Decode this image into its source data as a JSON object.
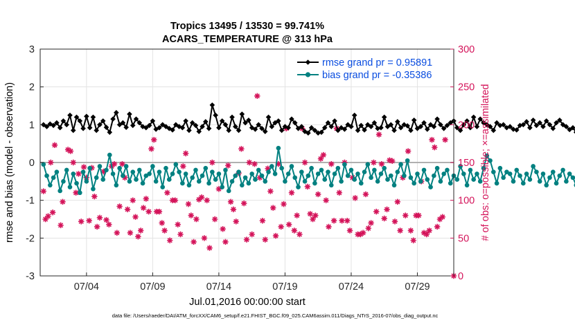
{
  "chart_data": {
    "type": "line",
    "title": "Tropics 13495 / 13530 = 99.741%",
    "subtitle": "ACARS_TEMPERATURE @ 313 hPa",
    "xlabel": "Jul.01,2016 00:00:00 start",
    "ylabel": "rmse and bias (model - observation)",
    "y2label": "# of obs: o=possible; ×=assimilated",
    "footnote": "data file: /Users/raeder/DAI/ATM_forcXX/CAM6_setup/f.e21.FHIST_BGC.f09_025.CAM6assim.011/Diags_NTrS_2016-07/obs_diag_output.nc",
    "xlim": [
      0.5,
      31.75
    ],
    "ylim": [
      -3,
      3
    ],
    "y2lim": [
      0,
      300
    ],
    "x_ticks": [
      {
        "value": 4,
        "label": "07/04"
      },
      {
        "value": 9,
        "label": "07/09"
      },
      {
        "value": 14,
        "label": "07/14"
      },
      {
        "value": 19,
        "label": "07/19"
      },
      {
        "value": 24,
        "label": "07/24"
      },
      {
        "value": 29,
        "label": "07/29"
      }
    ],
    "y_ticks": [
      "-3",
      "-2",
      "-1",
      "0",
      "1",
      "2",
      "3"
    ],
    "y2_ticks": [
      "0",
      "50",
      "100",
      "150",
      "200",
      "250",
      "300"
    ],
    "grid": true,
    "legend_position": "top-right",
    "colors": {
      "rmse": "#000000",
      "bias": "#008080",
      "obs": "#d4145a",
      "zero_line": "#b0b0b0",
      "right_axis": "#d4145a"
    },
    "x_start": 0.75,
    "x_step": 0.25,
    "series": [
      {
        "name": "rmse grand pr = 0.95891",
        "axis": "left",
        "marker": "diamond",
        "values": [
          1.0,
          0.95,
          1.02,
          0.98,
          1.05,
          0.92,
          1.1,
          1.0,
          1.25,
          0.85,
          1.2,
          1.1,
          0.9,
          1.22,
          0.92,
          1.2,
          0.85,
          1.0,
          1.1,
          0.93,
          0.8,
          1.15,
          1.32,
          1.0,
          1.05,
          0.93,
          1.28,
          0.98,
          1.15,
          1.05,
          0.95,
          0.92,
          0.98,
          1.1,
          0.88,
          0.92,
          1.0,
          0.95,
          0.9,
          0.86,
          1.0,
          0.95,
          0.92,
          1.1,
          0.85,
          1.05,
          0.98,
          0.82,
          0.95,
          1.08,
          0.9,
          1.52,
          1.25,
          0.92,
          1.1,
          1.0,
          0.85,
          1.2,
          0.95,
          0.85,
          1.28,
          1.05,
          1.12,
          0.92,
          0.88,
          1.0,
          0.9,
          0.82,
          1.2,
          0.95,
          1.05,
          1.1,
          0.85,
          0.95,
          0.92,
          1.15,
          1.05,
          0.9,
          0.95,
          0.82,
          0.78,
          0.92,
          0.85,
          0.78,
          0.8,
          0.92,
          1.05,
          0.95,
          1.1,
          0.85,
          0.92,
          0.88,
          1.0,
          0.95,
          1.25,
          0.85,
          0.98,
          0.86,
          1.0,
          0.95,
          1.05,
          0.9,
          0.92,
          1.2,
          0.95,
          1.0,
          0.85,
          1.08,
          0.92,
          1.0,
          0.97,
          0.85,
          1.12,
          0.9,
          0.95,
          1.05,
          0.88,
          1.0,
          0.95,
          1.15,
          1.0,
          0.9,
          0.98,
          1.05,
          1.1,
          0.92,
          0.85,
          1.0,
          1.1,
          0.92,
          1.2,
          0.95,
          1.15,
          1.05,
          1.0,
          0.95,
          0.85,
          1.05,
          0.98,
          1.0,
          0.92,
          0.95,
          0.88,
          0.86,
          0.98,
          1.0,
          1.08,
          0.92,
          1.12,
          0.98,
          1.05,
          0.95,
          1.1,
          1.0,
          0.9,
          1.05,
          1.12,
          1.0,
          0.95,
          0.87,
          0.92,
          0.8,
          0.98,
          1.0,
          1.48,
          1.05,
          0.85,
          1.15,
          0.9,
          1.05,
          1.22,
          0.88,
          1.0,
          1.1,
          0.95,
          0.85,
          1.05,
          0.9,
          1.0,
          0.95,
          1.05,
          0.98,
          0.85,
          0.88,
          1.0,
          0.92,
          1.05,
          0.95,
          0.97,
          1.0
        ]
      },
      {
        "name": "bias grand pr = -0.35386",
        "axis": "left",
        "marker": "circle",
        "values": [
          -0.05,
          -0.35,
          -0.6,
          -0.4,
          -0.25,
          -0.75,
          -0.5,
          -0.2,
          -0.65,
          -0.3,
          -0.55,
          -0.8,
          -0.25,
          -0.5,
          -0.15,
          -0.7,
          -0.4,
          -0.1,
          -0.45,
          -0.2,
          0.2,
          -0.3,
          -0.6,
          -0.15,
          -0.35,
          -0.1,
          -0.5,
          -0.25,
          -0.45,
          -0.2,
          -0.55,
          -0.35,
          -0.3,
          -0.1,
          -0.5,
          -0.25,
          -0.65,
          -0.15,
          -0.45,
          -0.3,
          -0.05,
          -0.25,
          -0.55,
          -0.3,
          -0.6,
          -0.4,
          -0.2,
          -0.5,
          -0.35,
          -0.15,
          -0.55,
          -0.25,
          -0.45,
          -0.3,
          -0.65,
          -0.2,
          -0.75,
          -0.5,
          -0.35,
          -0.25,
          -0.6,
          -0.4,
          -0.55,
          -0.3,
          -0.45,
          -0.2,
          -0.35,
          -0.5,
          -0.25,
          -0.1,
          -0.3,
          0.38,
          -0.15,
          -0.5,
          -0.3,
          -0.1,
          -0.4,
          -0.65,
          -0.25,
          -0.5,
          -0.35,
          -0.15,
          -0.55,
          -0.3,
          -0.2,
          -0.45,
          -0.25,
          -0.6,
          -0.3,
          -0.15,
          -0.5,
          -0.05,
          -0.35,
          -0.2,
          -0.45,
          -0.3,
          -0.55,
          -0.25,
          -0.05,
          -0.4,
          -0.2,
          -0.5,
          -0.3,
          -0.15,
          -0.45,
          -0.35,
          -0.6,
          -0.25,
          -0.05,
          -0.35,
          0.05,
          -0.4,
          -0.55,
          -0.3,
          -0.5,
          -0.2,
          -0.45,
          -0.65,
          -0.35,
          -0.15,
          -0.5,
          -0.3,
          -0.2,
          -0.55,
          -0.35,
          -0.45,
          -0.1,
          -0.3,
          -0.6,
          -0.2,
          -0.45,
          -0.3,
          -0.5,
          -0.15,
          0.18,
          0.05,
          -0.25,
          -0.55,
          -0.15,
          -0.4,
          -0.25,
          -0.3,
          -0.5,
          -0.2,
          -0.35,
          -0.55,
          -0.3,
          -0.45,
          -0.1,
          -0.25,
          -0.5,
          -0.3,
          -0.6,
          -0.4,
          -0.25,
          -0.55,
          -0.35,
          -0.2,
          -0.5,
          -0.3,
          -0.4,
          -0.6,
          -0.3,
          -0.5,
          -0.75,
          -0.35,
          -0.55,
          -0.4,
          -0.2,
          -0.6,
          -0.3,
          0.1,
          -0.35,
          -0.5,
          -0.2,
          0.0,
          0.22,
          -0.1,
          -0.3,
          0.15,
          -0.2,
          -0.4,
          -0.15,
          -0.35,
          -0.25,
          -0.45,
          -0.5,
          -0.2,
          -0.4,
          -0.3,
          -0.45,
          -0.55,
          -0.4
        ]
      },
      {
        "name": "obs possible/assimilated",
        "axis": "right",
        "marker": "star",
        "points": [
          [
            0.75,
            112
          ],
          [
            0.9,
            75
          ],
          [
            1.1,
            79
          ],
          [
            1.3,
            150
          ],
          [
            1.45,
            84
          ],
          [
            1.6,
            173
          ],
          [
            2.05,
            67
          ],
          [
            2.2,
            98
          ],
          [
            2.6,
            167
          ],
          [
            2.8,
            165
          ],
          [
            3.0,
            150
          ],
          [
            3.2,
            110
          ],
          [
            3.4,
            135
          ],
          [
            3.6,
            72
          ],
          [
            3.8,
            144
          ],
          [
            4.0,
            130
          ],
          [
            4.2,
            73
          ],
          [
            4.4,
            143
          ],
          [
            4.6,
            105
          ],
          [
            4.8,
            65
          ],
          [
            5.0,
            77
          ],
          [
            5.3,
            138
          ],
          [
            5.5,
            74
          ],
          [
            5.7,
            68
          ],
          [
            5.9,
            145
          ],
          [
            6.1,
            148
          ],
          [
            6.3,
            57
          ],
          [
            6.5,
            92
          ],
          [
            6.7,
            148
          ],
          [
            6.9,
            130
          ],
          [
            7.1,
            88
          ],
          [
            7.3,
            57
          ],
          [
            7.5,
            100
          ],
          [
            7.7,
            78
          ],
          [
            7.9,
            52
          ],
          [
            8.1,
            60
          ],
          [
            8.3,
            90
          ],
          [
            8.5,
            102
          ],
          [
            8.7,
            85
          ],
          [
            8.9,
            168
          ],
          [
            9.1,
            180
          ],
          [
            9.3,
            85
          ],
          [
            9.5,
            85
          ],
          [
            9.7,
            70
          ],
          [
            9.9,
            60
          ],
          [
            10.1,
            110
          ],
          [
            10.3,
            47
          ],
          [
            10.5,
            100
          ],
          [
            10.7,
            100
          ],
          [
            10.9,
            68
          ],
          [
            11.1,
            55
          ],
          [
            11.3,
            145
          ],
          [
            11.5,
            162
          ],
          [
            11.7,
            95
          ],
          [
            11.9,
            80
          ],
          [
            12.1,
            45
          ],
          [
            12.3,
            75
          ],
          [
            12.5,
            101
          ],
          [
            12.7,
            104
          ],
          [
            12.9,
            50
          ],
          [
            13.1,
            100
          ],
          [
            13.3,
            37
          ],
          [
            13.5,
            150
          ],
          [
            13.7,
            75
          ],
          [
            14.0,
            115
          ],
          [
            14.3,
            62
          ],
          [
            14.5,
            45
          ],
          [
            14.7,
            146
          ],
          [
            14.9,
            98
          ],
          [
            15.1,
            88
          ],
          [
            15.3,
            72
          ],
          [
            15.5,
            136
          ],
          [
            15.7,
            168
          ],
          [
            15.9,
            96
          ],
          [
            16.1,
            48
          ],
          [
            16.3,
            150
          ],
          [
            16.5,
            55
          ],
          [
            16.7,
            148
          ],
          [
            16.9,
            238
          ],
          [
            17.1,
            130
          ],
          [
            17.3,
            73
          ],
          [
            17.5,
            48
          ],
          [
            17.7,
            142
          ],
          [
            17.9,
            112
          ],
          [
            18.1,
            90
          ],
          [
            18.3,
            53
          ],
          [
            18.5,
            148
          ],
          [
            18.7,
            65
          ],
          [
            18.9,
            95
          ],
          [
            19.1,
            195
          ],
          [
            19.3,
            68
          ],
          [
            19.5,
            110
          ],
          [
            19.7,
            60
          ],
          [
            19.9,
            80
          ],
          [
            20.1,
            55
          ],
          [
            20.3,
            195
          ],
          [
            20.5,
            150
          ],
          [
            20.7,
            118
          ],
          [
            20.9,
            82
          ],
          [
            21.1,
            75
          ],
          [
            21.3,
            80
          ],
          [
            21.5,
            108
          ],
          [
            21.7,
            155
          ],
          [
            21.9,
            160
          ],
          [
            22.1,
            100
          ],
          [
            22.3,
            65
          ],
          [
            22.5,
            148
          ],
          [
            22.7,
            73
          ],
          [
            22.9,
            195
          ],
          [
            23.1,
            110
          ],
          [
            23.3,
            73
          ],
          [
            23.5,
            150
          ],
          [
            23.7,
            73
          ],
          [
            23.9,
            60
          ],
          [
            24.1,
            130
          ],
          [
            24.3,
            103
          ],
          [
            24.5,
            55
          ],
          [
            24.7,
            55
          ],
          [
            24.9,
            57
          ],
          [
            25.1,
            108
          ],
          [
            25.3,
            63
          ],
          [
            25.5,
            70
          ],
          [
            25.7,
            150
          ],
          [
            25.9,
            85
          ],
          [
            26.1,
            187
          ],
          [
            26.3,
            148
          ],
          [
            26.5,
            76
          ],
          [
            26.7,
            88
          ],
          [
            26.9,
            153
          ],
          [
            27.1,
            152
          ],
          [
            27.3,
            72
          ],
          [
            27.5,
            98
          ],
          [
            27.7,
            60
          ],
          [
            27.9,
            130
          ],
          [
            28.1,
            80
          ],
          [
            28.3,
            165
          ],
          [
            28.5,
            60
          ],
          [
            28.7,
            47
          ],
          [
            28.9,
            80
          ],
          [
            29.1,
            80
          ],
          [
            29.3,
            125
          ],
          [
            29.5,
            57
          ],
          [
            29.7,
            55
          ],
          [
            29.9,
            60
          ],
          [
            30.1,
            180
          ],
          [
            30.3,
            170
          ],
          [
            30.5,
            65
          ],
          [
            30.7,
            75
          ],
          [
            30.9,
            78
          ],
          [
            31.1,
            180
          ],
          [
            31.75,
            0
          ]
        ]
      }
    ]
  }
}
